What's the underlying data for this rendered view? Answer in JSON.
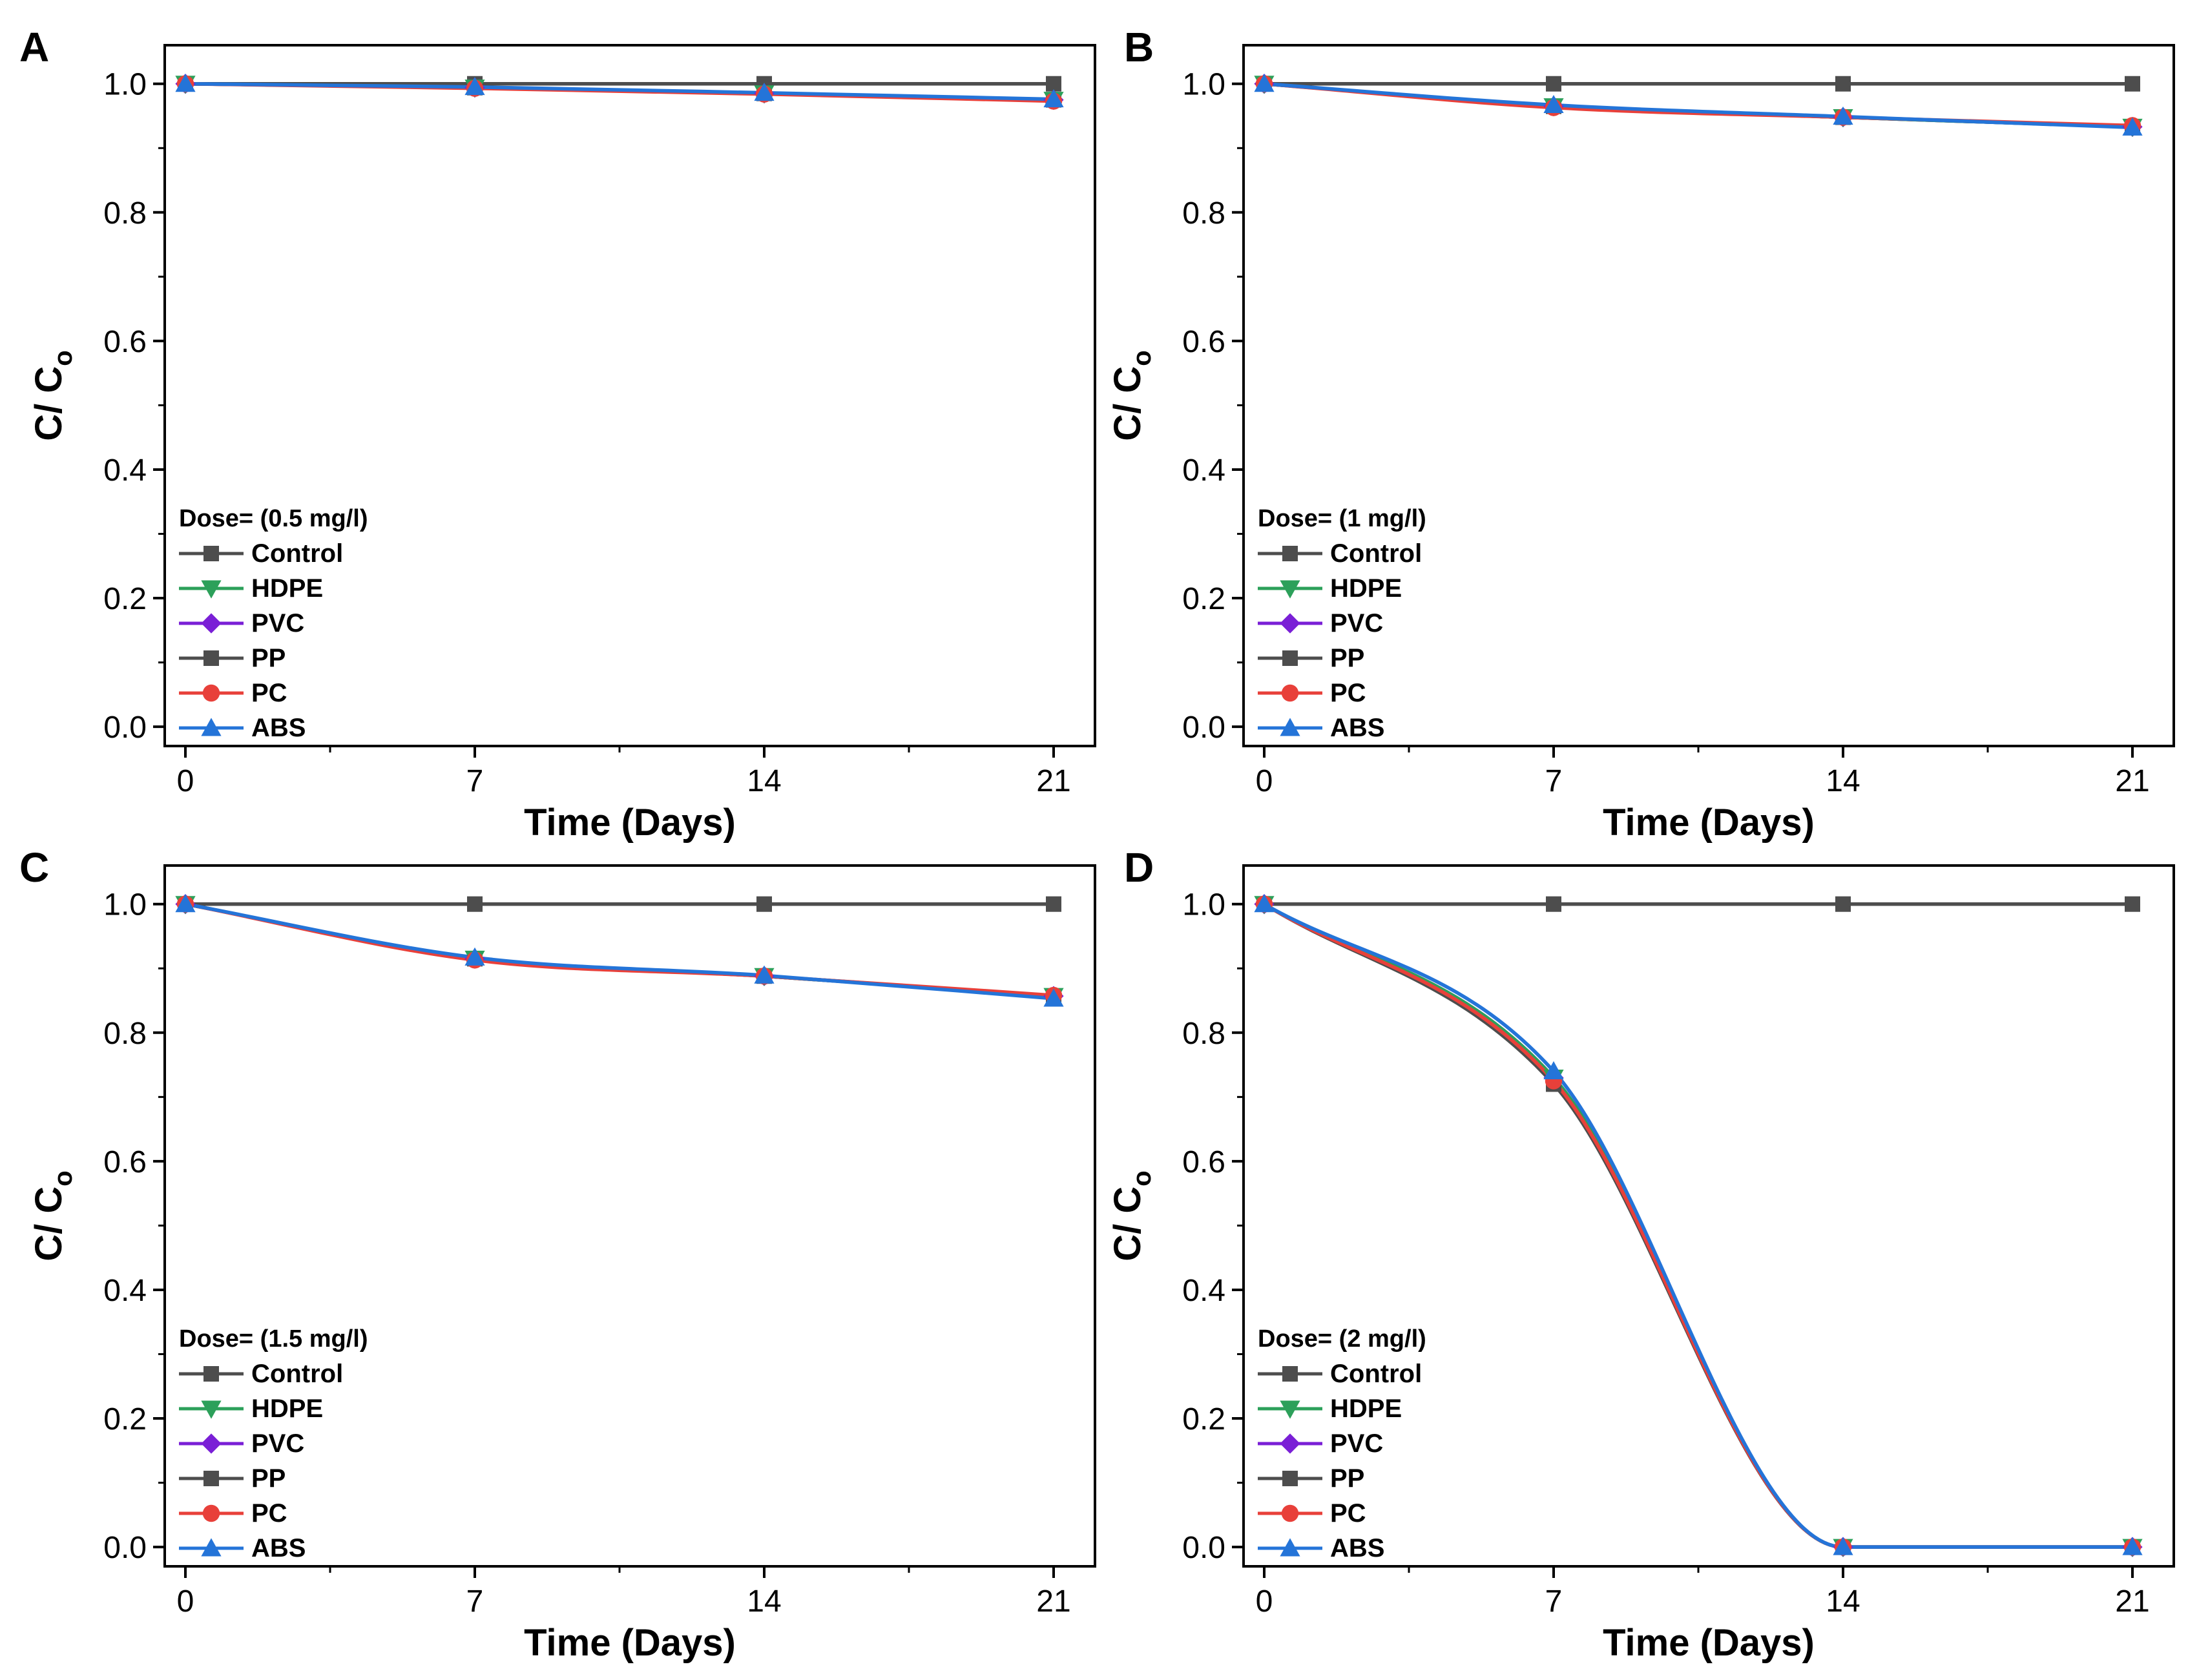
{
  "chart_data": [
    {
      "panel": "A",
      "type": "line",
      "x": [
        0,
        7,
        14,
        21
      ],
      "xlabel": "Time (Days)",
      "ylabel": "C/ C",
      "ylabel_sub": "o",
      "xlim": [
        -0.5,
        22
      ],
      "ylim": [
        -0.03,
        1.06
      ],
      "xticks": [
        0,
        7,
        14,
        21
      ],
      "yticks": [
        0.0,
        0.2,
        0.4,
        0.6,
        0.8,
        1.0
      ],
      "grid": false,
      "legend": {
        "title": "Dose= (0.5 mg/l)",
        "placement": "lower-left"
      },
      "series": [
        {
          "name": "Control",
          "marker": "square",
          "color": "#4d4d4d",
          "values": [
            1.0,
            1.0,
            1.0,
            1.0
          ]
        },
        {
          "name": "HDPE",
          "marker": "triangle-down",
          "color": "#2ca05a",
          "values": [
            1.0,
            0.994,
            0.985,
            0.975
          ]
        },
        {
          "name": "PVC",
          "marker": "diamond",
          "color": "#7a1fd6",
          "values": [
            1.0,
            0.994,
            0.985,
            0.975
          ]
        },
        {
          "name": "PP",
          "marker": "square",
          "color": "#4d4d4d",
          "values": [
            1.0,
            0.994,
            0.985,
            0.975
          ]
        },
        {
          "name": "PC",
          "marker": "circle",
          "color": "#e8403a",
          "values": [
            1.0,
            0.993,
            0.984,
            0.973
          ]
        },
        {
          "name": "ABS",
          "marker": "triangle-up",
          "color": "#2474d8",
          "values": [
            1.0,
            0.995,
            0.986,
            0.976
          ]
        }
      ]
    },
    {
      "panel": "B",
      "type": "line",
      "x": [
        0,
        7,
        14,
        21
      ],
      "xlabel": "Time (Days)",
      "ylabel": "C/ C",
      "ylabel_sub": "o",
      "xlim": [
        -0.5,
        22
      ],
      "ylim": [
        -0.03,
        1.06
      ],
      "xticks": [
        0,
        7,
        14,
        21
      ],
      "yticks": [
        0.0,
        0.2,
        0.4,
        0.6,
        0.8,
        1.0
      ],
      "grid": false,
      "legend": {
        "title": "Dose= (1 mg/l)",
        "placement": "lower-left"
      },
      "series": [
        {
          "name": "Control",
          "marker": "square",
          "color": "#4d4d4d",
          "values": [
            1.0,
            1.0,
            1.0,
            1.0
          ]
        },
        {
          "name": "HDPE",
          "marker": "triangle-down",
          "color": "#2ca05a",
          "values": [
            1.0,
            0.965,
            0.948,
            0.933
          ]
        },
        {
          "name": "PVC",
          "marker": "diamond",
          "color": "#7a1fd6",
          "values": [
            1.0,
            0.965,
            0.948,
            0.933
          ]
        },
        {
          "name": "PP",
          "marker": "square",
          "color": "#4d4d4d",
          "values": [
            1.0,
            0.965,
            0.948,
            0.933
          ]
        },
        {
          "name": "PC",
          "marker": "circle",
          "color": "#e8403a",
          "values": [
            1.0,
            0.963,
            0.948,
            0.935
          ]
        },
        {
          "name": "ABS",
          "marker": "triangle-up",
          "color": "#2474d8",
          "values": [
            1.0,
            0.967,
            0.949,
            0.932
          ]
        }
      ]
    },
    {
      "panel": "C",
      "type": "line",
      "x": [
        0,
        7,
        14,
        21
      ],
      "xlabel": "Time (Days)",
      "ylabel": "C/ C",
      "ylabel_sub": "o",
      "xlim": [
        -0.5,
        22
      ],
      "ylim": [
        -0.03,
        1.06
      ],
      "xticks": [
        0,
        7,
        14,
        21
      ],
      "yticks": [
        0.0,
        0.2,
        0.4,
        0.6,
        0.8,
        1.0
      ],
      "grid": false,
      "legend": {
        "title": "Dose= (1.5 mg/l)",
        "placement": "lower-left"
      },
      "series": [
        {
          "name": "Control",
          "marker": "square",
          "color": "#4d4d4d",
          "values": [
            1.0,
            1.0,
            1.0,
            1.0
          ]
        },
        {
          "name": "HDPE",
          "marker": "triangle-down",
          "color": "#2ca05a",
          "values": [
            1.0,
            0.915,
            0.888,
            0.857
          ]
        },
        {
          "name": "PVC",
          "marker": "diamond",
          "color": "#7a1fd6",
          "values": [
            1.0,
            0.915,
            0.888,
            0.857
          ]
        },
        {
          "name": "PP",
          "marker": "square",
          "color": "#4d4d4d",
          "values": [
            1.0,
            0.915,
            0.888,
            0.857
          ]
        },
        {
          "name": "PC",
          "marker": "circle",
          "color": "#e8403a",
          "values": [
            1.0,
            0.913,
            0.888,
            0.858
          ]
        },
        {
          "name": "ABS",
          "marker": "triangle-up",
          "color": "#2474d8",
          "values": [
            1.0,
            0.917,
            0.889,
            0.853
          ]
        }
      ]
    },
    {
      "panel": "D",
      "type": "line",
      "x": [
        0,
        7,
        14,
        21
      ],
      "xlabel": "Time (Days)",
      "ylabel": "C/ C",
      "ylabel_sub": "o",
      "xlim": [
        -0.5,
        22
      ],
      "ylim": [
        -0.03,
        1.06
      ],
      "xticks": [
        0,
        7,
        14,
        21
      ],
      "yticks": [
        0.0,
        0.2,
        0.4,
        0.6,
        0.8,
        1.0
      ],
      "grid": false,
      "legend": {
        "title": "Dose= (2 mg/l)",
        "placement": "lower-left"
      },
      "series": [
        {
          "name": "Control",
          "marker": "square",
          "color": "#4d4d4d",
          "values": [
            1.0,
            1.0,
            1.0,
            1.0
          ]
        },
        {
          "name": "HDPE",
          "marker": "triangle-down",
          "color": "#2ca05a",
          "values": [
            1.0,
            0.73,
            0.0,
            0.0
          ]
        },
        {
          "name": "PVC",
          "marker": "diamond",
          "color": "#7a1fd6",
          "values": [
            1.0,
            0.73,
            0.0,
            0.0
          ]
        },
        {
          "name": "PP",
          "marker": "square",
          "color": "#4d4d4d",
          "values": [
            1.0,
            0.72,
            0.0,
            0.0
          ]
        },
        {
          "name": "PC",
          "marker": "circle",
          "color": "#e8403a",
          "values": [
            1.0,
            0.725,
            0.0,
            0.0
          ]
        },
        {
          "name": "ABS",
          "marker": "triangle-up",
          "color": "#2474d8",
          "values": [
            1.0,
            0.74,
            0.0,
            0.0
          ]
        }
      ]
    }
  ]
}
